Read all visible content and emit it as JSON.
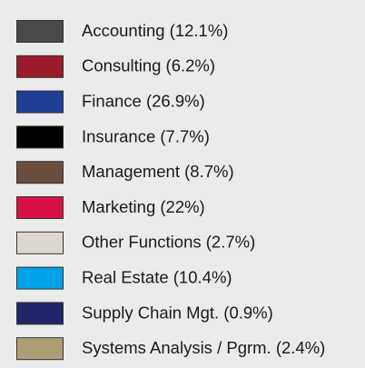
{
  "legend": {
    "items": [
      {
        "label": "Accounting (12.1%)",
        "color": "#4a4a4c"
      },
      {
        "label": "Consulting (6.2%)",
        "color": "#9b1b2c"
      },
      {
        "label": "Finance (26.9%)",
        "color": "#1f3f94"
      },
      {
        "label": "Insurance (7.7%)",
        "color": "#000000"
      },
      {
        "label": "Management (8.7%)",
        "color": "#6b4f3e"
      },
      {
        "label": "Marketing (22%)",
        "color": "#d81248"
      },
      {
        "label": "Other Functions (2.7%)",
        "color": "#dcd8d0"
      },
      {
        "label": "Real Estate (10.4%)",
        "color": "#00a3e8"
      },
      {
        "label": "Supply Chain Mgt. (0.9%)",
        "color": "#24246b"
      },
      {
        "label": "Systems Analysis / Pgrm. (2.4%)",
        "color": "#ad9f75"
      }
    ]
  }
}
